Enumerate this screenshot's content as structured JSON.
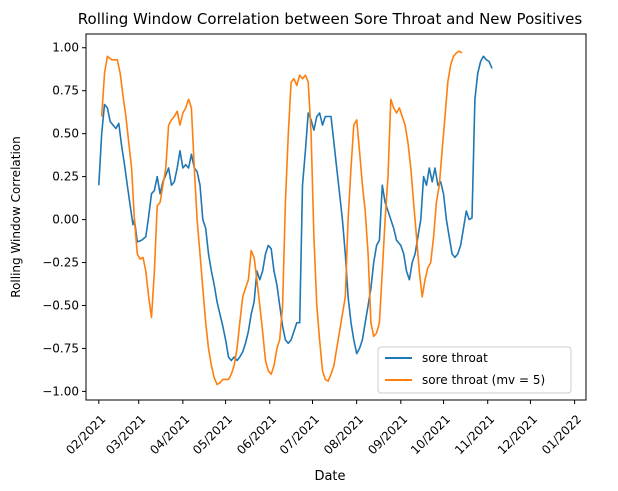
{
  "chart_data": {
    "type": "line",
    "title": "Rolling Window Correlation between Sore Throat and New Positives",
    "xlabel": "Date",
    "ylabel": "Rolling Window Correlation",
    "x_range": [
      "2021-01-23",
      "2022-01-09"
    ],
    "ylim": [
      -1.05,
      1.08
    ],
    "y_ticks": [
      -1.0,
      -0.75,
      -0.5,
      -0.25,
      0.0,
      0.25,
      0.5,
      0.75,
      1.0
    ],
    "y_tick_labels": [
      "−1.00",
      "−0.75",
      "−0.50",
      "−0.25",
      "0.00",
      "0.25",
      "0.50",
      "0.75",
      "1.00"
    ],
    "x_ticks": [
      "2021-02-01",
      "2021-03-01",
      "2021-04-01",
      "2021-05-01",
      "2021-06-01",
      "2021-07-01",
      "2021-08-01",
      "2021-09-01",
      "2021-10-01",
      "2021-11-01",
      "2021-12-01",
      "2022-01-01"
    ],
    "x_tick_labels": [
      "02/2021",
      "03/2021",
      "04/2021",
      "05/2021",
      "06/2021",
      "07/2021",
      "08/2021",
      "09/2021",
      "10/2021",
      "11/2021",
      "12/2021",
      "01/2022"
    ],
    "grid": false,
    "legend_position": "lower-right",
    "series": [
      {
        "name": "sore throat",
        "color": "#1f77b4",
        "points": [
          [
            "2021-02-01",
            0.2
          ],
          [
            "2021-02-03",
            0.5
          ],
          [
            "2021-02-05",
            0.67
          ],
          [
            "2021-02-07",
            0.65
          ],
          [
            "2021-02-09",
            0.57
          ],
          [
            "2021-02-11",
            0.55
          ],
          [
            "2021-02-13",
            0.53
          ],
          [
            "2021-02-15",
            0.56
          ],
          [
            "2021-02-17",
            0.43
          ],
          [
            "2021-02-19",
            0.32
          ],
          [
            "2021-02-21",
            0.2
          ],
          [
            "2021-02-23",
            0.08
          ],
          [
            "2021-02-25",
            -0.03
          ],
          [
            "2021-02-26",
            0.0
          ],
          [
            "2021-02-28",
            -0.13
          ],
          [
            "2021-03-03",
            -0.12
          ],
          [
            "2021-03-06",
            -0.1
          ],
          [
            "2021-03-08",
            0.02
          ],
          [
            "2021-03-10",
            0.15
          ],
          [
            "2021-03-12",
            0.17
          ],
          [
            "2021-03-14",
            0.25
          ],
          [
            "2021-03-16",
            0.15
          ],
          [
            "2021-03-18",
            0.22
          ],
          [
            "2021-03-20",
            0.26
          ],
          [
            "2021-03-22",
            0.3
          ],
          [
            "2021-03-24",
            0.2
          ],
          [
            "2021-03-26",
            0.22
          ],
          [
            "2021-03-28",
            0.3
          ],
          [
            "2021-03-30",
            0.4
          ],
          [
            "2021-04-01",
            0.3
          ],
          [
            "2021-04-03",
            0.32
          ],
          [
            "2021-04-05",
            0.3
          ],
          [
            "2021-04-07",
            0.38
          ],
          [
            "2021-04-09",
            0.3
          ],
          [
            "2021-04-11",
            0.28
          ],
          [
            "2021-04-13",
            0.2
          ],
          [
            "2021-04-15",
            0.0
          ],
          [
            "2021-04-17",
            -0.05
          ],
          [
            "2021-04-19",
            -0.2
          ],
          [
            "2021-04-21",
            -0.3
          ],
          [
            "2021-04-23",
            -0.38
          ],
          [
            "2021-04-25",
            -0.48
          ],
          [
            "2021-04-27",
            -0.55
          ],
          [
            "2021-04-29",
            -0.62
          ],
          [
            "2021-05-01",
            -0.7
          ],
          [
            "2021-05-03",
            -0.8
          ],
          [
            "2021-05-05",
            -0.82
          ],
          [
            "2021-05-07",
            -0.8
          ],
          [
            "2021-05-09",
            -0.82
          ],
          [
            "2021-05-11",
            -0.8
          ],
          [
            "2021-05-13",
            -0.77
          ],
          [
            "2021-05-15",
            -0.72
          ],
          [
            "2021-05-17",
            -0.65
          ],
          [
            "2021-05-19",
            -0.55
          ],
          [
            "2021-05-21",
            -0.48
          ],
          [
            "2021-05-23",
            -0.3
          ],
          [
            "2021-05-25",
            -0.35
          ],
          [
            "2021-05-27",
            -0.3
          ],
          [
            "2021-05-29",
            -0.2
          ],
          [
            "2021-05-31",
            -0.15
          ],
          [
            "2021-06-02",
            -0.17
          ],
          [
            "2021-06-04",
            -0.3
          ],
          [
            "2021-06-06",
            -0.38
          ],
          [
            "2021-06-08",
            -0.5
          ],
          [
            "2021-06-10",
            -0.62
          ],
          [
            "2021-06-12",
            -0.7
          ],
          [
            "2021-06-14",
            -0.72
          ],
          [
            "2021-06-16",
            -0.7
          ],
          [
            "2021-06-18",
            -0.65
          ],
          [
            "2021-06-20",
            -0.6
          ],
          [
            "2021-06-22",
            -0.6
          ],
          [
            "2021-06-24",
            0.2
          ],
          [
            "2021-06-26",
            0.4
          ],
          [
            "2021-06-28",
            0.62
          ],
          [
            "2021-06-30",
            0.58
          ],
          [
            "2021-07-02",
            0.52
          ],
          [
            "2021-07-04",
            0.6
          ],
          [
            "2021-07-06",
            0.62
          ],
          [
            "2021-07-08",
            0.55
          ],
          [
            "2021-07-10",
            0.6
          ],
          [
            "2021-07-12",
            0.6
          ],
          [
            "2021-07-14",
            0.6
          ],
          [
            "2021-07-16",
            0.45
          ],
          [
            "2021-07-18",
            0.3
          ],
          [
            "2021-07-20",
            0.15
          ],
          [
            "2021-07-22",
            0.0
          ],
          [
            "2021-07-24",
            -0.2
          ],
          [
            "2021-07-26",
            -0.45
          ],
          [
            "2021-07-28",
            -0.6
          ],
          [
            "2021-07-30",
            -0.7
          ],
          [
            "2021-08-01",
            -0.78
          ],
          [
            "2021-08-03",
            -0.75
          ],
          [
            "2021-08-05",
            -0.7
          ],
          [
            "2021-08-07",
            -0.6
          ],
          [
            "2021-08-09",
            -0.5
          ],
          [
            "2021-08-11",
            -0.4
          ],
          [
            "2021-08-13",
            -0.25
          ],
          [
            "2021-08-15",
            -0.15
          ],
          [
            "2021-08-17",
            -0.12
          ],
          [
            "2021-08-19",
            0.2
          ],
          [
            "2021-08-21",
            0.1
          ],
          [
            "2021-08-23",
            0.05
          ],
          [
            "2021-08-25",
            0.0
          ],
          [
            "2021-08-27",
            -0.05
          ],
          [
            "2021-08-29",
            -0.12
          ],
          [
            "2021-09-01",
            -0.15
          ],
          [
            "2021-09-03",
            -0.2
          ],
          [
            "2021-09-05",
            -0.3
          ],
          [
            "2021-09-07",
            -0.35
          ],
          [
            "2021-09-09",
            -0.25
          ],
          [
            "2021-09-11",
            -0.2
          ],
          [
            "2021-09-13",
            -0.1
          ],
          [
            "2021-09-15",
            0.0
          ],
          [
            "2021-09-17",
            0.25
          ],
          [
            "2021-09-19",
            0.2
          ],
          [
            "2021-09-21",
            0.3
          ],
          [
            "2021-09-23",
            0.22
          ],
          [
            "2021-09-25",
            0.3
          ],
          [
            "2021-09-27",
            0.2
          ],
          [
            "2021-09-29",
            0.22
          ],
          [
            "2021-10-01",
            0.15
          ],
          [
            "2021-10-03",
            0.0
          ],
          [
            "2021-10-05",
            -0.1
          ],
          [
            "2021-10-07",
            -0.2
          ],
          [
            "2021-10-09",
            -0.22
          ],
          [
            "2021-10-11",
            -0.2
          ],
          [
            "2021-10-13",
            -0.15
          ],
          [
            "2021-10-15",
            -0.05
          ],
          [
            "2021-10-17",
            0.05
          ],
          [
            "2021-10-19",
            0.0
          ],
          [
            "2021-10-21",
            0.01
          ],
          [
            "2021-10-23",
            0.7
          ],
          [
            "2021-10-25",
            0.85
          ],
          [
            "2021-10-27",
            0.92
          ],
          [
            "2021-10-29",
            0.95
          ],
          [
            "2021-10-31",
            0.93
          ],
          [
            "2021-11-02",
            0.92
          ],
          [
            "2021-11-04",
            0.88
          ]
        ]
      },
      {
        "name": "sore throat (mv = 5)",
        "color": "#ff7f0e",
        "points": [
          [
            "2021-02-03",
            0.6
          ],
          [
            "2021-02-05",
            0.85
          ],
          [
            "2021-02-07",
            0.95
          ],
          [
            "2021-02-10",
            0.93
          ],
          [
            "2021-02-14",
            0.93
          ],
          [
            "2021-02-16",
            0.85
          ],
          [
            "2021-02-18",
            0.72
          ],
          [
            "2021-02-20",
            0.6
          ],
          [
            "2021-02-22",
            0.45
          ],
          [
            "2021-02-24",
            0.3
          ],
          [
            "2021-02-26",
            0.0
          ],
          [
            "2021-02-28",
            -0.2
          ],
          [
            "2021-03-02",
            -0.23
          ],
          [
            "2021-03-04",
            -0.22
          ],
          [
            "2021-03-06",
            -0.3
          ],
          [
            "2021-03-08",
            -0.45
          ],
          [
            "2021-03-10",
            -0.57
          ],
          [
            "2021-03-12",
            -0.3
          ],
          [
            "2021-03-14",
            0.08
          ],
          [
            "2021-03-16",
            0.1
          ],
          [
            "2021-03-18",
            0.2
          ],
          [
            "2021-03-20",
            0.3
          ],
          [
            "2021-03-22",
            0.55
          ],
          [
            "2021-03-24",
            0.58
          ],
          [
            "2021-03-26",
            0.6
          ],
          [
            "2021-03-28",
            0.63
          ],
          [
            "2021-03-30",
            0.55
          ],
          [
            "2021-04-01",
            0.62
          ],
          [
            "2021-04-03",
            0.65
          ],
          [
            "2021-04-05",
            0.7
          ],
          [
            "2021-04-07",
            0.65
          ],
          [
            "2021-04-09",
            0.3
          ],
          [
            "2021-04-11",
            0.0
          ],
          [
            "2021-04-13",
            -0.2
          ],
          [
            "2021-04-15",
            -0.4
          ],
          [
            "2021-04-17",
            -0.6
          ],
          [
            "2021-04-19",
            -0.75
          ],
          [
            "2021-04-21",
            -0.85
          ],
          [
            "2021-04-23",
            -0.92
          ],
          [
            "2021-04-25",
            -0.96
          ],
          [
            "2021-04-27",
            -0.95
          ],
          [
            "2021-04-29",
            -0.93
          ],
          [
            "2021-05-01",
            -0.93
          ],
          [
            "2021-05-03",
            -0.93
          ],
          [
            "2021-05-05",
            -0.9
          ],
          [
            "2021-05-07",
            -0.85
          ],
          [
            "2021-05-09",
            -0.75
          ],
          [
            "2021-05-11",
            -0.6
          ],
          [
            "2021-05-13",
            -0.45
          ],
          [
            "2021-05-15",
            -0.4
          ],
          [
            "2021-05-17",
            -0.35
          ],
          [
            "2021-05-19",
            -0.18
          ],
          [
            "2021-05-21",
            -0.22
          ],
          [
            "2021-05-23",
            -0.35
          ],
          [
            "2021-05-25",
            -0.5
          ],
          [
            "2021-05-27",
            -0.65
          ],
          [
            "2021-05-29",
            -0.82
          ],
          [
            "2021-05-31",
            -0.88
          ],
          [
            "2021-06-02",
            -0.9
          ],
          [
            "2021-06-04",
            -0.85
          ],
          [
            "2021-06-06",
            -0.75
          ],
          [
            "2021-06-08",
            -0.7
          ],
          [
            "2021-06-10",
            -0.5
          ],
          [
            "2021-06-12",
            0.1
          ],
          [
            "2021-06-14",
            0.5
          ],
          [
            "2021-06-16",
            0.8
          ],
          [
            "2021-06-18",
            0.82
          ],
          [
            "2021-06-20",
            0.78
          ],
          [
            "2021-06-22",
            0.84
          ],
          [
            "2021-06-24",
            0.82
          ],
          [
            "2021-06-26",
            0.84
          ],
          [
            "2021-06-28",
            0.8
          ],
          [
            "2021-06-30",
            0.5
          ],
          [
            "2021-07-02",
            -0.1
          ],
          [
            "2021-07-04",
            -0.5
          ],
          [
            "2021-07-06",
            -0.7
          ],
          [
            "2021-07-08",
            -0.88
          ],
          [
            "2021-07-10",
            -0.93
          ],
          [
            "2021-07-12",
            -0.94
          ],
          [
            "2021-07-14",
            -0.9
          ],
          [
            "2021-07-16",
            -0.85
          ],
          [
            "2021-07-18",
            -0.75
          ],
          [
            "2021-07-20",
            -0.65
          ],
          [
            "2021-07-22",
            -0.55
          ],
          [
            "2021-07-24",
            -0.45
          ],
          [
            "2021-07-26",
            0.0
          ],
          [
            "2021-07-28",
            0.3
          ],
          [
            "2021-07-30",
            0.55
          ],
          [
            "2021-08-01",
            0.58
          ],
          [
            "2021-08-03",
            0.4
          ],
          [
            "2021-08-05",
            0.2
          ],
          [
            "2021-08-07",
            0.05
          ],
          [
            "2021-08-09",
            -0.2
          ],
          [
            "2021-08-11",
            -0.6
          ],
          [
            "2021-08-13",
            -0.68
          ],
          [
            "2021-08-15",
            -0.66
          ],
          [
            "2021-08-17",
            -0.6
          ],
          [
            "2021-08-19",
            -0.3
          ],
          [
            "2021-08-21",
            0.0
          ],
          [
            "2021-08-23",
            0.25
          ],
          [
            "2021-08-25",
            0.7
          ],
          [
            "2021-08-27",
            0.65
          ],
          [
            "2021-08-29",
            0.62
          ],
          [
            "2021-08-31",
            0.65
          ],
          [
            "2021-09-02",
            0.6
          ],
          [
            "2021-09-04",
            0.55
          ],
          [
            "2021-09-06",
            0.45
          ],
          [
            "2021-09-08",
            0.3
          ],
          [
            "2021-09-10",
            0.1
          ],
          [
            "2021-09-12",
            -0.1
          ],
          [
            "2021-09-14",
            -0.3
          ],
          [
            "2021-09-16",
            -0.45
          ],
          [
            "2021-09-18",
            -0.35
          ],
          [
            "2021-09-20",
            -0.28
          ],
          [
            "2021-09-22",
            -0.25
          ],
          [
            "2021-09-24",
            -0.1
          ],
          [
            "2021-09-26",
            0.1
          ],
          [
            "2021-09-28",
            0.2
          ],
          [
            "2021-09-30",
            0.4
          ],
          [
            "2021-10-02",
            0.6
          ],
          [
            "2021-10-04",
            0.8
          ],
          [
            "2021-10-06",
            0.9
          ],
          [
            "2021-10-08",
            0.95
          ],
          [
            "2021-10-10",
            0.97
          ],
          [
            "2021-10-12",
            0.98
          ],
          [
            "2021-10-14",
            0.97
          ]
        ]
      }
    ]
  }
}
